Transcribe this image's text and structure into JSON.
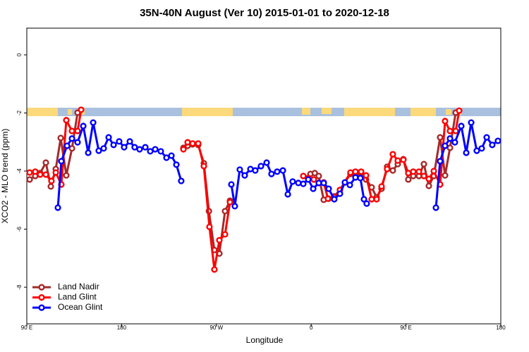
{
  "chart_data": {
    "type": "line",
    "title": "35N-40N August (Ver 10)   2015-01-01 to 2020-12-18",
    "xlabel": "Longitude",
    "ylabel": "XCO2 - MLO trend (ppm)",
    "xlim": [
      90,
      540
    ],
    "ylim": [
      -9.26,
      0.92
    ],
    "xticks": [
      {
        "value": 90,
        "label": "90 E"
      },
      180,
      {
        "value": 270,
        "label": "90 W"
      },
      {
        "value": 360,
        "label": "0"
      },
      {
        "value": 450,
        "label": "90 E"
      },
      {
        "value": 540,
        "label": "180"
      }
    ],
    "yticks": [
      0,
      -2,
      -4,
      -6,
      -8
    ],
    "legend": "bottomleft",
    "series": [
      {
        "name": "Land Nadir",
        "color": "#a52a2a",
        "x": [
          92.7,
          98.0,
          102.7,
          108.1,
          112.8,
          117.5,
          122.2,
          127.5,
          132.9,
          138.2,
          null,
          238.7,
          242.7,
          247.4,
          252.7,
          258.1,
          262.9,
          268.1,
          272.8,
          278.2,
          282.9,
          null,
          359.3,
          363.4,
          367.2,
          371.9,
          376.6,
          381.9,
          387.3,
          397.3,
          402.0,
          407.4,
          412.1,
          417.4,
          422.1,
          426.8,
          432.1,
          437.5,
          442.2,
          447.5,
          452.2,
          456.9,
          462.3,
          467.0,
          471.7,
          476.4,
          482.4,
          487.1,
          491.8,
          497.2
        ],
        "values": [
          -4.29,
          -4.17,
          -4.07,
          -3.71,
          -4.53,
          -3.93,
          -2.86,
          -4.15,
          -3.22,
          -1.99,
          null,
          -3.2,
          -3.13,
          -3.08,
          -3.1,
          -3.73,
          -5.38,
          -6.72,
          -6.84,
          -5.38,
          -5.02,
          null,
          -4.1,
          -4.07,
          -4.17,
          -4.99,
          -4.95,
          -4.87,
          -4.65,
          -4.1,
          -4.05,
          -4.19,
          -4.29,
          -4.56,
          -4.9,
          -4.61,
          -3.85,
          -3.98,
          -3.76,
          -3.59,
          -4.29,
          -4.17,
          -4.17,
          -3.76,
          -4.51,
          -4.17,
          -2.84,
          -4.15,
          -3.2,
          -1.99
        ]
      },
      {
        "name": "Land Glint",
        "color": "#ff0000",
        "x": [
          92.7,
          98.0,
          102.7,
          108.1,
          113.4,
          117.5,
          122.8,
          127.5,
          132.9,
          138.2,
          141.6,
          null,
          238.7,
          242.7,
          247.4,
          252.7,
          258.1,
          263.4,
          268.1,
          272.8,
          278.2,
          282.9,
          null,
          352.5,
          357.2,
          362.5,
          367.2,
          371.9,
          375.9,
          381.9,
          387.3,
          397.3,
          402.0,
          407.4,
          412.1,
          417.4,
          422.1,
          426.8,
          432.1,
          437.5,
          442.2,
          447.5,
          452.2,
          456.9,
          462.3,
          467.0,
          471.7,
          476.4,
          482.4,
          487.1,
          491.8,
          497.2,
          500.5
        ],
        "values": [
          -4.05,
          -4.02,
          -4.12,
          -4.12,
          -4.34,
          -4.05,
          -4.46,
          -2.25,
          -2.62,
          -2.62,
          -1.89,
          null,
          -3.25,
          -3.01,
          -3.05,
          -3.05,
          -3.83,
          -5.92,
          -7.39,
          -6.38,
          -6.18,
          -5.07,
          null,
          -4.17,
          -4.24,
          -4.29,
          -4.41,
          -4.39,
          -4.95,
          -4.9,
          -4.65,
          -4.05,
          -4.02,
          -4.02,
          -4.15,
          -4.97,
          -4.97,
          -4.53,
          -3.93,
          -3.42,
          -3.64,
          -3.61,
          -4.07,
          -4.02,
          -4.02,
          -4.17,
          -4.27,
          -4.0,
          -4.46,
          -2.28,
          -2.62,
          -2.62,
          -1.92
        ]
      },
      {
        "name": "Ocean Glint",
        "color": "#0000ff",
        "x": [
          119.5,
          122.8,
          128.2,
          132.9,
          138.2,
          143.6,
          148.3,
          153.0,
          158.3,
          163.0,
          167.7,
          172.4,
          177.7,
          182.4,
          187.8,
          192.4,
          197.1,
          202.5,
          207.2,
          211.9,
          217.2,
          222.6,
          227.3,
          232.0,
          236.6,
          null,
          284.2,
          287.5,
          292.2,
          296.9,
          302.3,
          306.9,
          312.3,
          317.7,
          322.3,
          327.7,
          333.1,
          337.8,
          342.4,
          347.8,
          352.5,
          357.2,
          361.9,
          367.2,
          371.9,
          376.6,
          381.9,
          387.3,
          392.0,
          396.7,
          402.0,
          406.7,
          410.1,
          412.7,
          null,
          478.4,
          482.4,
          487.1,
          491.8,
          496.4,
          502.5,
          507.2,
          511.9,
          517.2,
          521.9,
          526.6,
          531.9,
          537.3
        ],
        "values": [
          -5.26,
          -3.66,
          -3.13,
          -2.88,
          -3.01,
          -2.45,
          -3.37,
          -2.33,
          -3.3,
          -3.22,
          -2.84,
          -3.1,
          -2.98,
          -3.18,
          -2.98,
          -3.18,
          -3.25,
          -3.18,
          -3.32,
          -3.25,
          -3.32,
          -3.54,
          -3.47,
          -3.78,
          -4.34,
          null,
          -4.46,
          -5.21,
          -3.95,
          -4.15,
          -3.93,
          -3.98,
          -3.83,
          -3.71,
          -4.1,
          -4.02,
          -3.98,
          -4.8,
          -4.36,
          -4.41,
          -4.44,
          -4.29,
          -4.61,
          -4.41,
          -4.41,
          -4.61,
          -4.97,
          -4.78,
          -4.39,
          -4.48,
          -4.22,
          -4.24,
          -4.97,
          -5.12,
          null,
          -5.26,
          -3.66,
          -3.13,
          -2.88,
          -3.01,
          -2.45,
          -3.37,
          -2.33,
          -3.3,
          -3.22,
          -2.84,
          -3.1,
          -2.96
        ]
      }
    ]
  }
}
